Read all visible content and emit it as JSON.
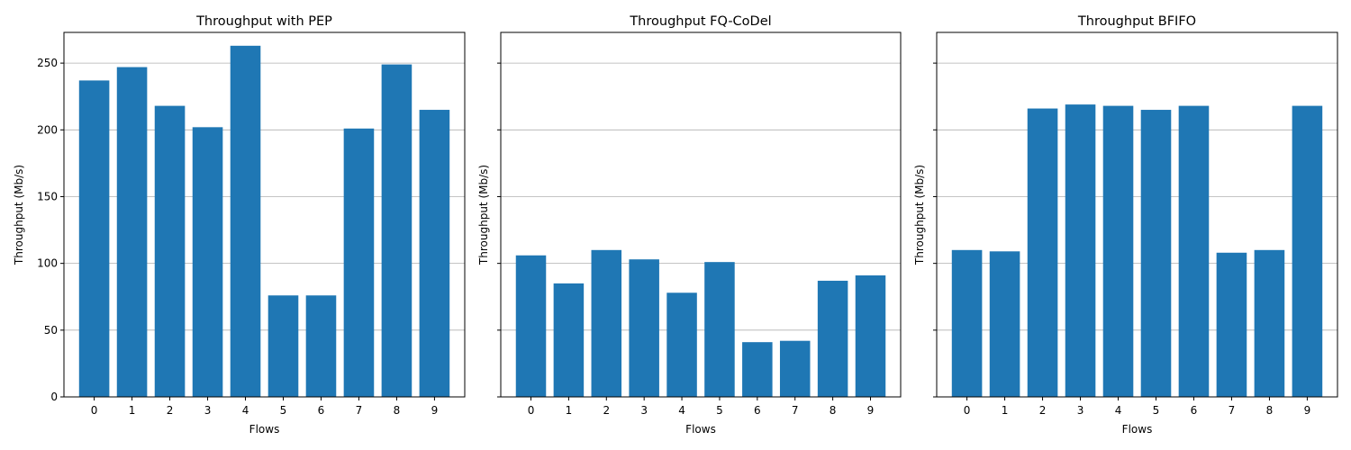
{
  "chart_data": [
    {
      "type": "bar",
      "title": "Throughput with PEP",
      "xlabel": "Flows",
      "ylabel": "Throughput (Mb/s)",
      "categories": [
        "0",
        "1",
        "2",
        "3",
        "4",
        "5",
        "6",
        "7",
        "8",
        "9"
      ],
      "values": [
        237,
        247,
        218,
        202,
        263,
        76,
        76,
        201,
        249,
        215
      ],
      "ylim": [
        0,
        273
      ],
      "yticks": [
        "0",
        "50",
        "100",
        "150",
        "200",
        "250"
      ],
      "grid": "y",
      "show_ytick_labels": true
    },
    {
      "type": "bar",
      "title": "Throughput FQ-CoDel",
      "xlabel": "Flows",
      "ylabel": "Throughput (Mb/s)",
      "categories": [
        "0",
        "1",
        "2",
        "3",
        "4",
        "5",
        "6",
        "7",
        "8",
        "9"
      ],
      "values": [
        106,
        85,
        110,
        103,
        78,
        101,
        41,
        42,
        87,
        91
      ],
      "ylim": [
        0,
        273
      ],
      "yticks": [
        "0",
        "50",
        "100",
        "150",
        "200",
        "250"
      ],
      "grid": "y",
      "show_ytick_labels": false
    },
    {
      "type": "bar",
      "title": "Throughput BFIFO",
      "xlabel": "Flows",
      "ylabel": "Throughput (Mb/s)",
      "categories": [
        "0",
        "1",
        "2",
        "3",
        "4",
        "5",
        "6",
        "7",
        "8",
        "9"
      ],
      "values": [
        110,
        109,
        216,
        219,
        218,
        215,
        218,
        108,
        110,
        218
      ],
      "ylim": [
        0,
        273
      ],
      "yticks": [
        "0",
        "50",
        "100",
        "150",
        "200",
        "250"
      ],
      "grid": "y",
      "show_ytick_labels": false
    }
  ],
  "colors": {
    "bar": "#1f77b4",
    "grid": "#b0b0b0",
    "axis": "#000000"
  }
}
